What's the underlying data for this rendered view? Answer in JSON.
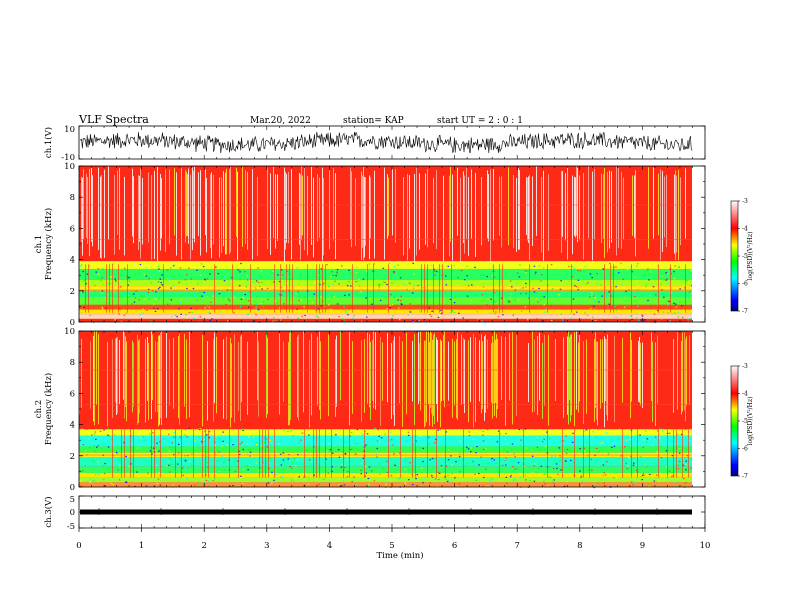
{
  "header": {
    "title": "VLF Spectra",
    "date": "Mar.20, 2022",
    "station": "station= KAP",
    "start": "start  UT =  2 : 0  : 1"
  },
  "chart_data": {
    "type": "heatmap",
    "title": "VLF Spectra",
    "x": {
      "label": "Time  (min)",
      "range": [
        0,
        10
      ],
      "ticks": [
        "0",
        "1",
        "2",
        "3",
        "4",
        "5",
        "6",
        "7",
        "8",
        "9",
        "10"
      ]
    },
    "panels": [
      {
        "id": "ch1_wave",
        "type": "line",
        "ylabel": "ch.1(V)",
        "yrange": [
          -10,
          10
        ],
        "yticks": [
          "10",
          "-10"
        ],
        "amplitude_approx": 6
      },
      {
        "id": "ch1_spec",
        "type": "heatmap",
        "ylabel": "Frequency  (kHz)",
        "ylabel2": "ch.1",
        "yrange": [
          0,
          10
        ],
        "yticks": [
          "0",
          "2",
          "4",
          "6",
          "8",
          "10"
        ]
      },
      {
        "id": "ch2_spec",
        "type": "heatmap",
        "ylabel": "Frequency  (kHz)",
        "ylabel2": "ch.2",
        "yrange": [
          0,
          10
        ],
        "yticks": [
          "0",
          "2",
          "4",
          "6",
          "8",
          "10"
        ]
      },
      {
        "id": "ch3_wave",
        "type": "line",
        "ylabel": "ch.3(V)",
        "yrange": [
          -5,
          5
        ],
        "yticks": [
          "5",
          "0",
          "-5"
        ],
        "level_approx": 0
      }
    ],
    "colorbar": {
      "label": "log(PSD)(V²/Hz)",
      "range": [
        -7,
        -3
      ],
      "ticks": [
        "-3",
        "-4",
        "-5",
        "-6",
        "-7"
      ],
      "colors": [
        "#000080",
        "#0000ff",
        "#00ffff",
        "#00ff00",
        "#ffff00",
        "#ff0000",
        "#ffffff"
      ]
    }
  }
}
